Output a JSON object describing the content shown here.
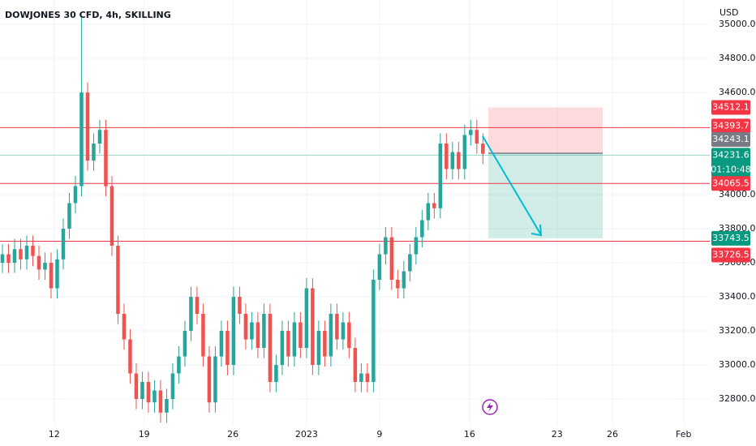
{
  "chart_data": {
    "type": "candlestick",
    "title": "DOWJONES 30 CFD, 4h, SKILLING",
    "axis_label": "USD",
    "countdown": "01:10:48",
    "up_color": "#26a69a",
    "down_color": "#ef5350",
    "grid": true,
    "ylim": [
      32643,
      35143
    ],
    "xlim": [
      -0.4,
      116.3
    ],
    "yticks": [
      {
        "value": 35000,
        "label": "35000.0"
      },
      {
        "value": 34800,
        "label": "34800.0"
      },
      {
        "value": 34600,
        "label": "34600.0"
      },
      {
        "value": 34000,
        "label": "34000.0"
      },
      {
        "value": 33800,
        "label": "33800.0"
      },
      {
        "value": 33600,
        "label": "33600.0"
      },
      {
        "value": 33400,
        "label": "33400.0"
      },
      {
        "value": 33200,
        "label": "33200.0"
      },
      {
        "value": 33000,
        "label": "33000.0"
      },
      {
        "value": 32800,
        "label": "32800.0"
      }
    ],
    "xticks": [
      {
        "value": 8.5,
        "label": "12"
      },
      {
        "value": 23.3,
        "label": "19"
      },
      {
        "value": 37.9,
        "label": "26"
      },
      {
        "value": 50,
        "label": "2023"
      },
      {
        "value": 62,
        "label": "9"
      },
      {
        "value": 76.8,
        "label": "16"
      },
      {
        "value": 91.2,
        "label": "23"
      },
      {
        "value": 100.3,
        "label": "26"
      },
      {
        "value": 112,
        "label": "Feb"
      }
    ],
    "open": [
      33600,
      33650,
      33600,
      33680,
      33620,
      33700,
      33640,
      33560,
      33600,
      33450,
      33620,
      33800,
      33950,
      34050,
      34600,
      34200,
      34300,
      34380,
      34050,
      33700,
      33300,
      33150,
      32950,
      32800,
      32900,
      32780,
      32850,
      32720,
      32800,
      32950,
      33050,
      33200,
      33400,
      33300,
      33050,
      32780,
      33050,
      33200,
      33000,
      33400,
      33300,
      33150,
      33250,
      33100,
      33300,
      32900,
      33000,
      33200,
      33050,
      33250,
      33100,
      33450,
      33000,
      33200,
      33050,
      33300,
      33150,
      33250,
      33100,
      32900,
      32950,
      32900,
      33500,
      33650,
      33750,
      33500,
      33450,
      33550,
      33650,
      33750,
      33850,
      33950,
      33920,
      34300,
      34150,
      34250,
      34150,
      34350,
      34380,
      34300
    ],
    "high": [
      33710,
      33710,
      33740,
      33740,
      33760,
      33760,
      33700,
      33660,
      33660,
      33680,
      33860,
      34010,
      34110,
      35050,
      34660,
      34360,
      34440,
      34440,
      34110,
      33760,
      33360,
      33210,
      33010,
      32960,
      32960,
      32910,
      32910,
      32860,
      33010,
      33110,
      33260,
      33460,
      33460,
      33360,
      33110,
      33110,
      33260,
      33260,
      33460,
      33460,
      33360,
      33310,
      33310,
      33360,
      33360,
      33060,
      33260,
      33260,
      33310,
      33310,
      33510,
      33510,
      33260,
      33260,
      33360,
      33360,
      33310,
      33310,
      33160,
      33010,
      33010,
      33560,
      33710,
      33810,
      33810,
      33560,
      33610,
      33710,
      33810,
      33910,
      34010,
      34010,
      34360,
      34360,
      34310,
      34310,
      34410,
      34440,
      34440,
      34360
    ],
    "low": [
      33540,
      33540,
      33540,
      33560,
      33560,
      33580,
      33500,
      33500,
      33390,
      33390,
      33560,
      33740,
      33890,
      33990,
      34140,
      34140,
      34240,
      33990,
      33640,
      33240,
      33090,
      32890,
      32740,
      32740,
      32720,
      32720,
      32660,
      32660,
      32740,
      32890,
      32990,
      33140,
      33240,
      32990,
      32720,
      32720,
      32990,
      32940,
      32940,
      33240,
      33090,
      33090,
      33040,
      33040,
      32840,
      32840,
      32940,
      32990,
      32990,
      33040,
      33040,
      32940,
      32940,
      32990,
      32990,
      33090,
      33090,
      33040,
      32840,
      32840,
      32840,
      32840,
      33440,
      33590,
      33440,
      33390,
      33390,
      33490,
      33590,
      33690,
      33790,
      33860,
      33860,
      34090,
      34090,
      34090,
      34090,
      34290,
      34240,
      34180
    ],
    "close": [
      33650,
      33600,
      33680,
      33620,
      33700,
      33640,
      33560,
      33600,
      33450,
      33620,
      33800,
      33950,
      34050,
      34600,
      34200,
      34300,
      34380,
      34050,
      33700,
      33300,
      33150,
      32950,
      32800,
      32900,
      32780,
      32850,
      32720,
      32800,
      32950,
      33050,
      33200,
      33400,
      33300,
      33050,
      32780,
      33050,
      33200,
      33000,
      33400,
      33300,
      33150,
      33250,
      33100,
      33300,
      32900,
      33000,
      33200,
      33050,
      33250,
      33100,
      33450,
      33000,
      33200,
      33050,
      33300,
      33150,
      33250,
      33100,
      32900,
      32950,
      32900,
      33500,
      33650,
      33750,
      33500,
      33450,
      33550,
      33650,
      33750,
      33850,
      33950,
      33920,
      34300,
      34150,
      34250,
      34150,
      34350,
      34380,
      34300,
      34240
    ],
    "levels": [
      {
        "value": 34512.1,
        "color": "#f23645",
        "line": false
      },
      {
        "value": 34393.7,
        "color": "#f23645",
        "line": true
      },
      {
        "value": 34243.1,
        "color": "#787b86",
        "line": false
      },
      {
        "value": 34231.6,
        "color": "#089981",
        "line": true
      },
      {
        "value": 34065.5,
        "color": "#f23645",
        "line": true
      },
      {
        "value": 33743.5,
        "color": "#089981",
        "line": false
      },
      {
        "value": 33726.5,
        "color": "#f23645",
        "line": true
      }
    ]
  }
}
